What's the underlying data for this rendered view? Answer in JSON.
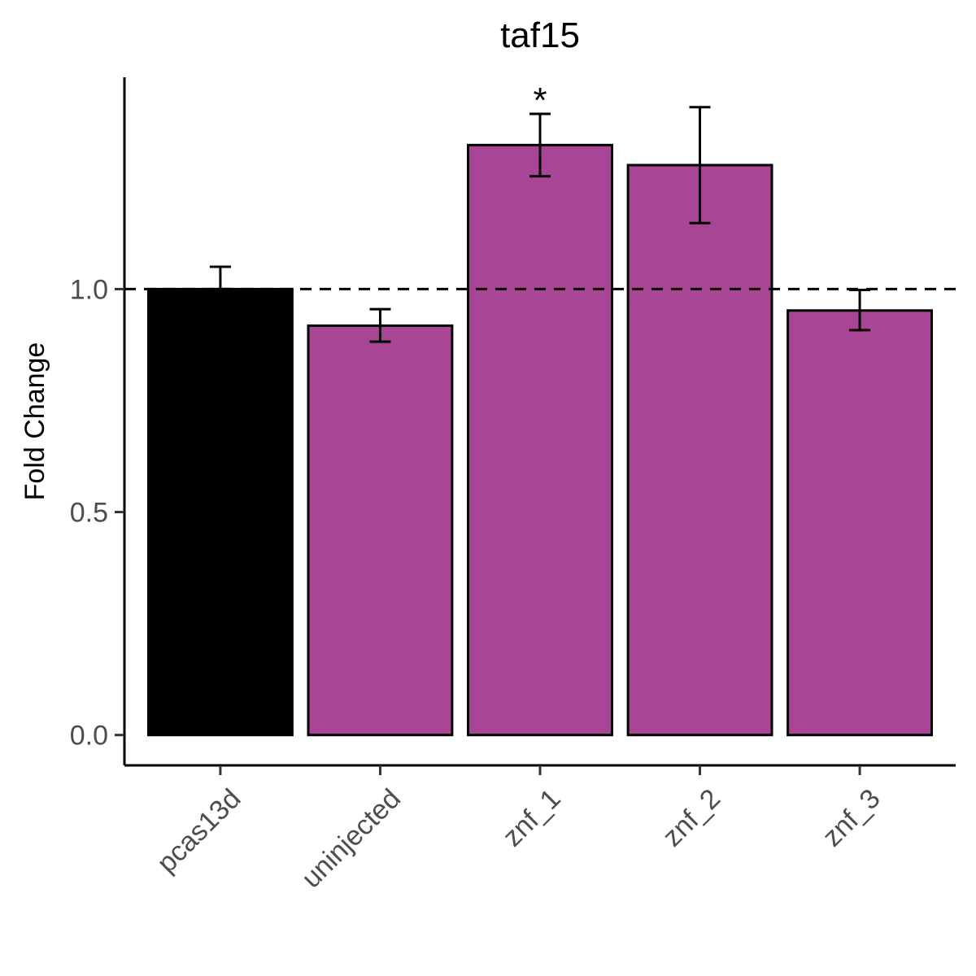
{
  "chart_data": {
    "type": "bar",
    "title": "taf15",
    "xlabel": "",
    "ylabel": "Fold Change",
    "categories": [
      "pcas13d",
      "uninjected",
      "znf_1",
      "znf_2",
      "znf_3"
    ],
    "values": [
      1.0,
      0.918,
      1.323,
      1.278,
      0.952
    ],
    "error_low": [
      1.0,
      0.882,
      1.253,
      1.148,
      0.908
    ],
    "error_high": [
      1.05,
      0.955,
      1.393,
      1.408,
      0.998
    ],
    "annotations": [
      "",
      "",
      "*",
      "",
      ""
    ],
    "yticks": [
      0.0,
      0.5,
      1.0
    ],
    "ytick_labels": [
      "0.0",
      "0.5",
      "1.0"
    ],
    "ylim": [
      -0.068,
      1.475
    ],
    "reference_line": 1.0,
    "bar_colors": [
      "#000000",
      "#a84595",
      "#a84595",
      "#a84595",
      "#a84595"
    ],
    "grid": false,
    "legend": "none"
  }
}
